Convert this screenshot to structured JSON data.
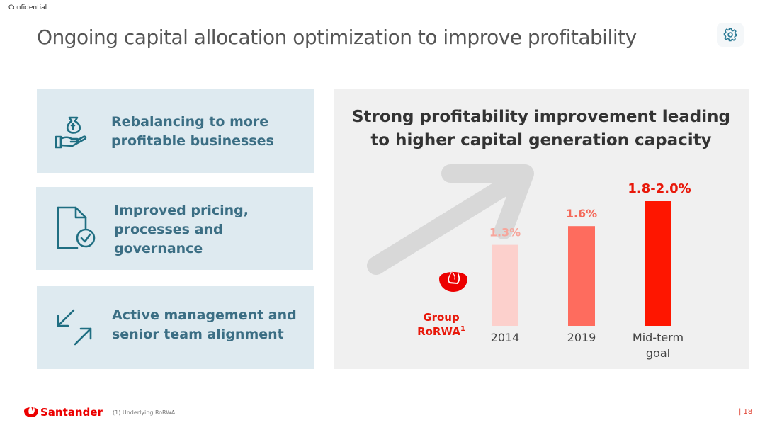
{
  "header": {
    "confidential": "Confidential",
    "title": "Ongoing capital allocation optimization to improve profitability",
    "settings_icon": "gear-icon"
  },
  "cards": [
    {
      "icon": "hand-moneybag-icon",
      "lines": [
        "Rebalancing to more",
        "profitable businesses"
      ]
    },
    {
      "icon": "document-check-icon",
      "lines": [
        "Improved pricing,",
        "processes and",
        "governance"
      ]
    },
    {
      "icon": "diagonal-arrows-icon",
      "lines": [
        "Active management and",
        "senior team alignment"
      ]
    }
  ],
  "panel": {
    "title_lines": [
      "Strong profitability improvement leading",
      "to higher capital generation capacity"
    ],
    "metric_label_lines": [
      "Group",
      "RoRWA"
    ],
    "metric_superscript": "1",
    "logo_icon": "santander-flame-icon"
  },
  "chart_data": {
    "type": "bar",
    "categories": [
      "2014",
      "2019",
      "Mid-term goal"
    ],
    "category_label_lines": [
      [
        "2014"
      ],
      [
        "2019"
      ],
      [
        "Mid-term",
        "goal"
      ]
    ],
    "values": [
      1.3,
      1.6,
      2.0
    ],
    "data_labels": [
      "1.3%",
      "1.6%",
      "1.8-2.0%"
    ],
    "ylim": [
      0,
      2.4
    ],
    "colors": [
      "#fcd0cc",
      "#fe6c5e",
      "#fe1600"
    ],
    "label_colors": [
      "#f6a69c",
      "#f4695a",
      "#e8180a"
    ]
  },
  "footer": {
    "brand": "Santander",
    "footnote": "(1) Underlying RoRWA",
    "page": "|  18"
  },
  "colors": {
    "accent_teal": "#1f6e82",
    "card_bg": "#deeaf0",
    "santander_red": "#ec0000"
  }
}
